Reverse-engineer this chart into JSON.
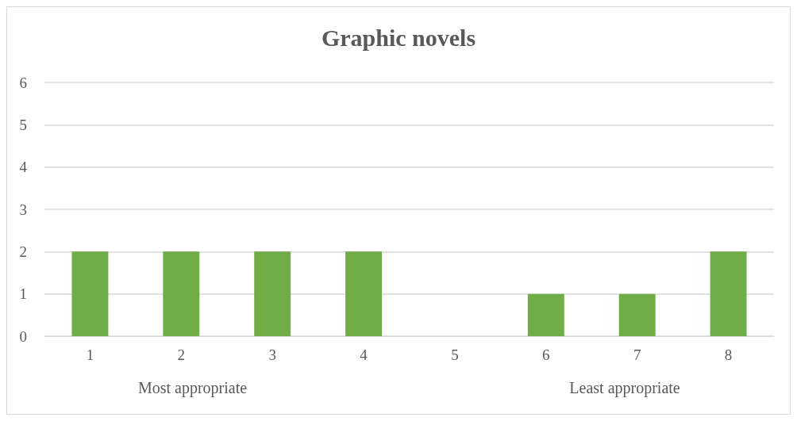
{
  "chart_data": {
    "type": "bar",
    "title": "Graphic novels",
    "categories": [
      "1",
      "2",
      "3",
      "4",
      "5",
      "6",
      "7",
      "8"
    ],
    "values": [
      2,
      2,
      2,
      2,
      0,
      1,
      1,
      2
    ],
    "color": "#70ad47",
    "ylim": [
      0,
      6
    ],
    "yticks": [
      0,
      1,
      2,
      3,
      4,
      5,
      6
    ],
    "grid": "y",
    "annotations": [
      "Most appropriate",
      "Least appropriate"
    ]
  }
}
